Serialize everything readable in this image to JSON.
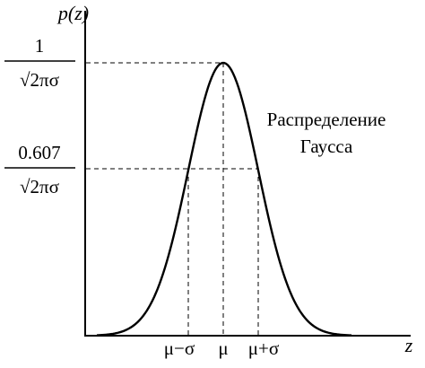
{
  "y_axis_label": "p(z)",
  "x_axis_label": "z",
  "peak_label": {
    "numerator": "1",
    "denominator": "√2πσ",
    "value": 1.0
  },
  "mid_label": {
    "numerator": "0.607",
    "denominator": "√2πσ",
    "value": 0.607
  },
  "x_ticks": [
    "μ−σ",
    "μ",
    "μ+σ"
  ],
  "caption": {
    "line1": "Распределение",
    "line2": "Гаусса"
  },
  "distribution": {
    "mean_offset_sigma": 0,
    "relative_height_at_one_sigma": 0.607
  }
}
